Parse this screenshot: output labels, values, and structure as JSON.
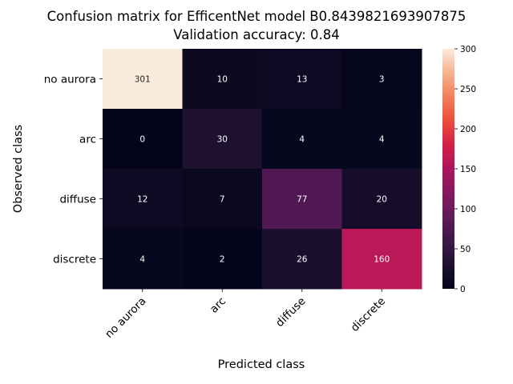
{
  "chart_data": {
    "type": "heatmap",
    "title": "Confusion matrix for EfficentNet model B0.8439821693907875",
    "subtitle": "Validation accuracy: 0.84",
    "xlabel": "Predicted class",
    "ylabel": "Observed class",
    "x_categories": [
      "no aurora",
      "arc",
      "diffuse",
      "discrete"
    ],
    "y_categories": [
      "no aurora",
      "arc",
      "diffuse",
      "discrete"
    ],
    "values": [
      [
        301,
        10,
        13,
        3
      ],
      [
        0,
        30,
        4,
        4
      ],
      [
        12,
        7,
        77,
        20
      ],
      [
        4,
        2,
        26,
        160
      ]
    ],
    "colorbar": {
      "min": 0,
      "max": 300,
      "ticks": [
        "0",
        "50",
        "100",
        "150",
        "200",
        "250",
        "300"
      ]
    },
    "colormap": "rocket"
  }
}
